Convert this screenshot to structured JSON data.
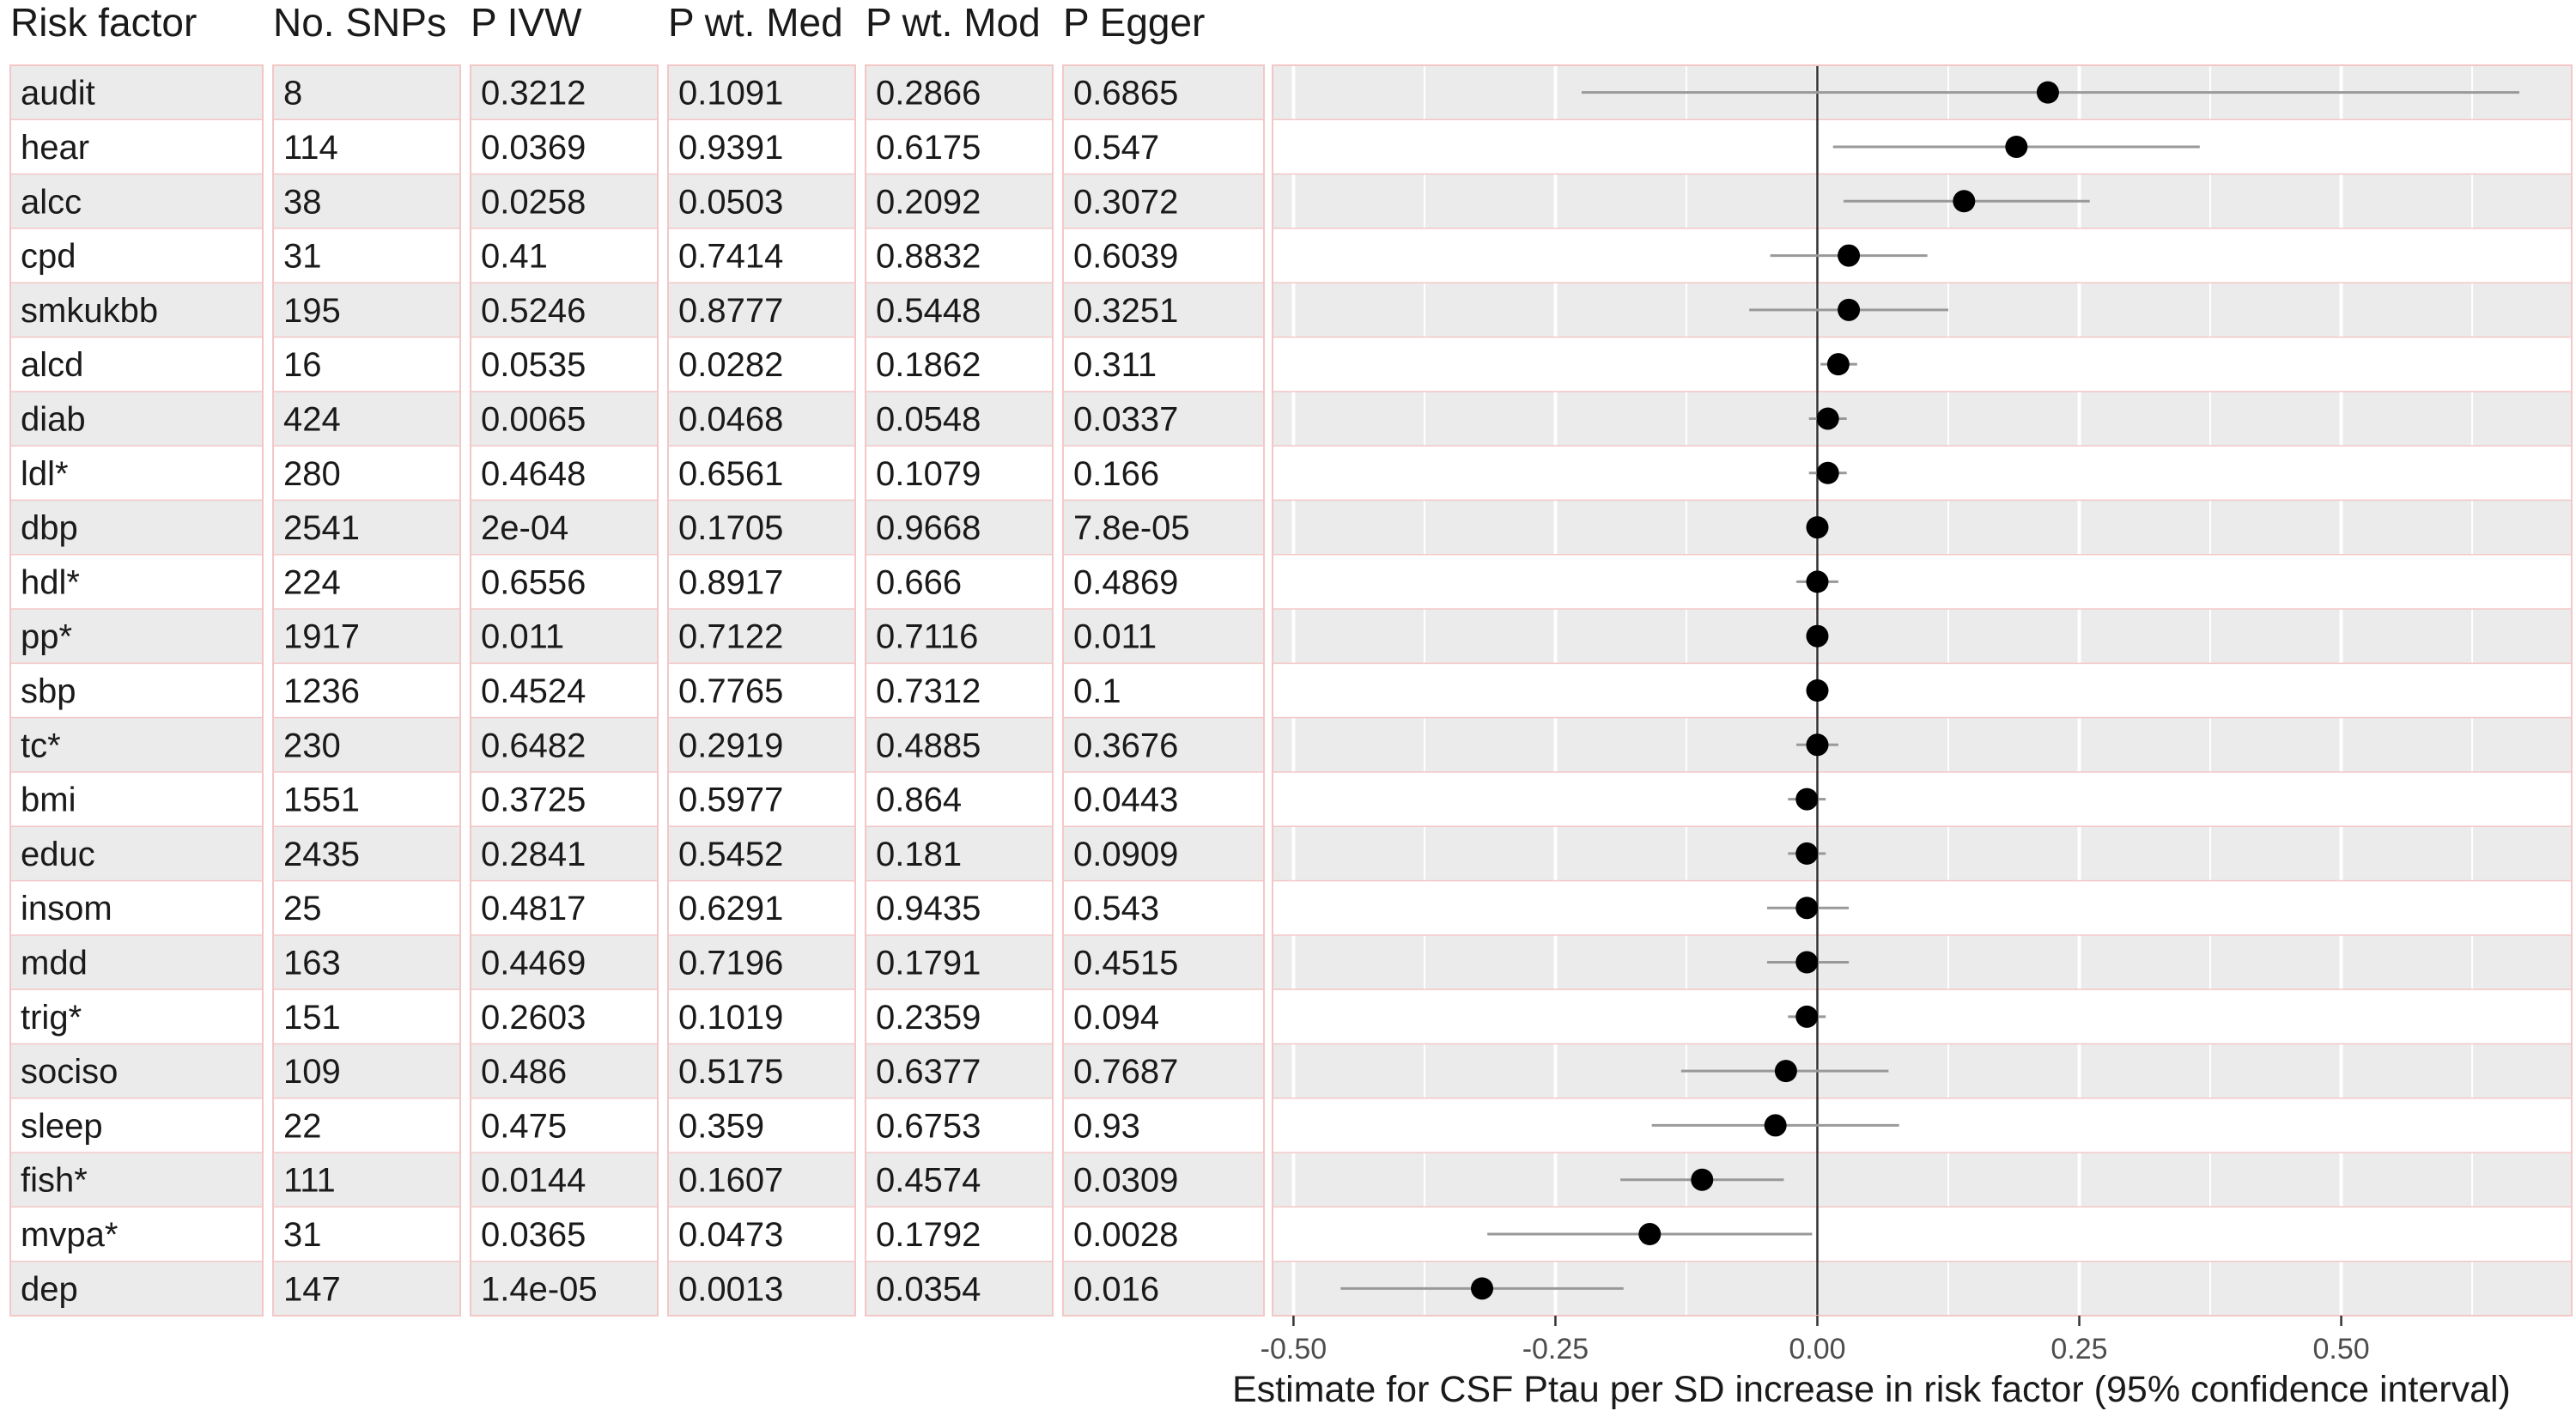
{
  "table": {
    "headers": [
      "Risk factor",
      "No. SNPs",
      "P IVW",
      "P wt. Med",
      "P wt. Mod",
      "P Egger"
    ]
  },
  "chart_data": {
    "type": "forest",
    "xlabel": "Estimate for CSF Ptau per SD increase in risk factor (95% confidence interval)",
    "xlim": [
      -0.52,
      0.72
    ],
    "xticks": [
      -0.5,
      -0.25,
      0.0,
      0.25,
      0.5
    ],
    "xtick_labels": [
      "-0.50",
      "-0.25",
      "0.00",
      "0.25",
      "0.50"
    ],
    "reference_line": 0,
    "rows": [
      {
        "factor": "audit",
        "snps": "8",
        "p_ivw": "0.3212",
        "p_wmed": "0.1091",
        "p_wmod": "0.2866",
        "p_egger": "0.6865",
        "est": 0.22,
        "lo": -0.225,
        "hi": 0.67
      },
      {
        "factor": "hear",
        "snps": "114",
        "p_ivw": "0.0369",
        "p_wmed": "0.9391",
        "p_wmod": "0.6175",
        "p_egger": "0.547",
        "est": 0.19,
        "lo": 0.015,
        "hi": 0.365
      },
      {
        "factor": "alcc",
        "snps": "38",
        "p_ivw": "0.0258",
        "p_wmed": "0.0503",
        "p_wmod": "0.2092",
        "p_egger": "0.3072",
        "est": 0.14,
        "lo": 0.025,
        "hi": 0.26
      },
      {
        "factor": "cpd",
        "snps": "31",
        "p_ivw": "0.41",
        "p_wmed": "0.7414",
        "p_wmod": "0.8832",
        "p_egger": "0.6039",
        "est": 0.03,
        "lo": -0.045,
        "hi": 0.105
      },
      {
        "factor": "smkukbb",
        "snps": "195",
        "p_ivw": "0.5246",
        "p_wmed": "0.8777",
        "p_wmod": "0.5448",
        "p_egger": "0.3251",
        "est": 0.03,
        "lo": -0.065,
        "hi": 0.125
      },
      {
        "factor": "alcd",
        "snps": "16",
        "p_ivw": "0.0535",
        "p_wmed": "0.0282",
        "p_wmod": "0.1862",
        "p_egger": "0.311",
        "est": 0.02,
        "lo": 0.003,
        "hi": 0.038
      },
      {
        "factor": "diab",
        "snps": "424",
        "p_ivw": "0.0065",
        "p_wmed": "0.0468",
        "p_wmod": "0.0548",
        "p_egger": "0.0337",
        "est": 0.01,
        "lo": -0.008,
        "hi": 0.028
      },
      {
        "factor": "ldl*",
        "snps": "280",
        "p_ivw": "0.4648",
        "p_wmed": "0.6561",
        "p_wmod": "0.1079",
        "p_egger": "0.166",
        "est": 0.01,
        "lo": -0.008,
        "hi": 0.028
      },
      {
        "factor": "dbp",
        "snps": "2541",
        "p_ivw": "2e-04",
        "p_wmed": "0.1705",
        "p_wmod": "0.9668",
        "p_egger": "7.8e-05",
        "est": 0.0,
        "lo": -0.004,
        "hi": 0.004
      },
      {
        "factor": "hdl*",
        "snps": "224",
        "p_ivw": "0.6556",
        "p_wmed": "0.8917",
        "p_wmod": "0.666",
        "p_egger": "0.4869",
        "est": 0.0,
        "lo": -0.02,
        "hi": 0.02
      },
      {
        "factor": "pp*",
        "snps": "1917",
        "p_ivw": "0.011",
        "p_wmed": "0.7122",
        "p_wmod": "0.7116",
        "p_egger": "0.011",
        "est": 0.0,
        "lo": -0.006,
        "hi": 0.006
      },
      {
        "factor": "sbp",
        "snps": "1236",
        "p_ivw": "0.4524",
        "p_wmed": "0.7765",
        "p_wmod": "0.7312",
        "p_egger": "0.1",
        "est": 0.0,
        "lo": -0.004,
        "hi": 0.004
      },
      {
        "factor": "tc*",
        "snps": "230",
        "p_ivw": "0.6482",
        "p_wmed": "0.2919",
        "p_wmod": "0.4885",
        "p_egger": "0.3676",
        "est": 0.0,
        "lo": -0.02,
        "hi": 0.02
      },
      {
        "factor": "bmi",
        "snps": "1551",
        "p_ivw": "0.3725",
        "p_wmed": "0.5977",
        "p_wmod": "0.864",
        "p_egger": "0.0443",
        "est": -0.01,
        "lo": -0.028,
        "hi": 0.008
      },
      {
        "factor": "educ",
        "snps": "2435",
        "p_ivw": "0.2841",
        "p_wmed": "0.5452",
        "p_wmod": "0.181",
        "p_egger": "0.0909",
        "est": -0.01,
        "lo": -0.028,
        "hi": 0.008
      },
      {
        "factor": "insom",
        "snps": "25",
        "p_ivw": "0.4817",
        "p_wmed": "0.6291",
        "p_wmod": "0.9435",
        "p_egger": "0.543",
        "est": -0.01,
        "lo": -0.048,
        "hi": 0.03
      },
      {
        "factor": "mdd",
        "snps": "163",
        "p_ivw": "0.4469",
        "p_wmed": "0.7196",
        "p_wmod": "0.1791",
        "p_egger": "0.4515",
        "est": -0.01,
        "lo": -0.048,
        "hi": 0.03
      },
      {
        "factor": "trig*",
        "snps": "151",
        "p_ivw": "0.2603",
        "p_wmed": "0.1019",
        "p_wmod": "0.2359",
        "p_egger": "0.094",
        "est": -0.01,
        "lo": -0.028,
        "hi": 0.008
      },
      {
        "factor": "sociso",
        "snps": "109",
        "p_ivw": "0.486",
        "p_wmed": "0.5175",
        "p_wmod": "0.6377",
        "p_egger": "0.7687",
        "est": -0.03,
        "lo": -0.13,
        "hi": 0.068
      },
      {
        "factor": "sleep",
        "snps": "22",
        "p_ivw": "0.475",
        "p_wmed": "0.359",
        "p_wmod": "0.6753",
        "p_egger": "0.93",
        "est": -0.04,
        "lo": -0.158,
        "hi": 0.078
      },
      {
        "factor": "fish*",
        "snps": "111",
        "p_ivw": "0.0144",
        "p_wmed": "0.1607",
        "p_wmod": "0.4574",
        "p_egger": "0.0309",
        "est": -0.11,
        "lo": -0.188,
        "hi": -0.032
      },
      {
        "factor": "mvpa*",
        "snps": "31",
        "p_ivw": "0.0365",
        "p_wmed": "0.0473",
        "p_wmod": "0.1792",
        "p_egger": "0.0028",
        "est": -0.16,
        "lo": -0.315,
        "hi": -0.005
      },
      {
        "factor": "dep",
        "snps": "147",
        "p_ivw": "1.4e-05",
        "p_wmed": "0.0013",
        "p_wmod": "0.0354",
        "p_egger": "0.016",
        "est": -0.32,
        "lo": -0.455,
        "hi": -0.185
      }
    ]
  },
  "colors": {
    "row_shade": "#ebebeb",
    "panel_border": "#f4c7c7",
    "gridline": "#ffffff",
    "ci_line": "#999999",
    "point": "#000000",
    "zero_line": "#333333"
  }
}
